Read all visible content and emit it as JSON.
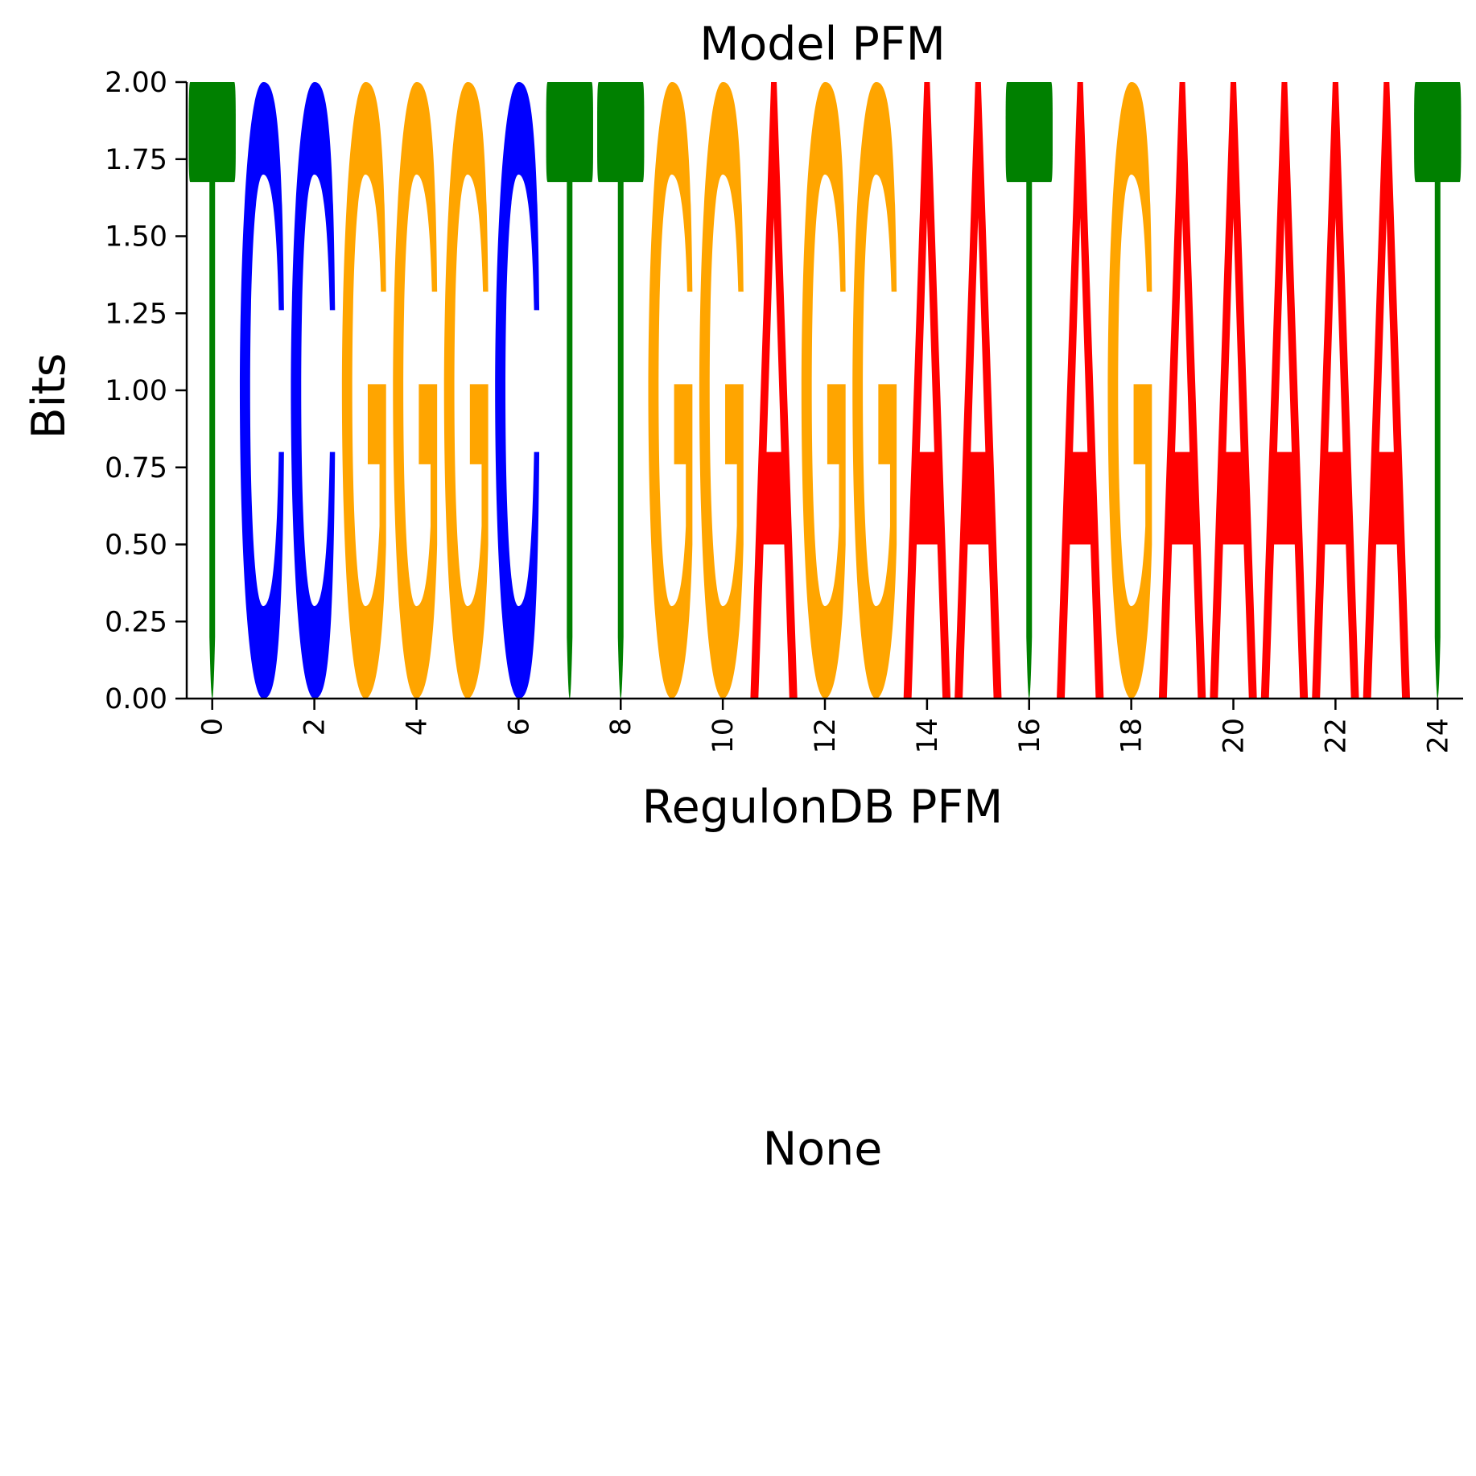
{
  "chart_data": {
    "type": "sequence-logo",
    "title": "Model PFM",
    "xlabel": "RegulonDB PFM",
    "ylabel": "Bits",
    "xlim": [
      -0.5,
      24.5
    ],
    "ylim": [
      0,
      2
    ],
    "x_ticks": [
      "0",
      "2",
      "4",
      "6",
      "8",
      "10",
      "12",
      "14",
      "16",
      "18",
      "20",
      "22",
      "24"
    ],
    "y_ticks": [
      "0.00",
      "0.25",
      "0.50",
      "0.75",
      "1.00",
      "1.25",
      "1.50",
      "1.75",
      "2.00"
    ],
    "positions": [
      0,
      1,
      2,
      3,
      4,
      5,
      6,
      7,
      8,
      9,
      10,
      11,
      12,
      13,
      14,
      15,
      16,
      17,
      18,
      19,
      20,
      21,
      22,
      23,
      24
    ],
    "sequence": [
      "T",
      "C",
      "C",
      "G",
      "G",
      "G",
      "C",
      "T",
      "T",
      "G",
      "G",
      "A",
      "G",
      "G",
      "A",
      "A",
      "T",
      "A",
      "G",
      "A",
      "A",
      "A",
      "A",
      "A",
      "T"
    ],
    "bits": [
      2,
      2,
      2,
      2,
      2,
      2,
      2,
      2,
      2,
      2,
      2,
      2,
      2,
      2,
      2,
      2,
      2,
      2,
      2,
      2,
      2,
      2,
      2,
      2,
      2
    ],
    "colors": {
      "A": "#ff0000",
      "C": "#0000ff",
      "G": "#ffa500",
      "T": "#008000"
    },
    "grid": false,
    "lower_panel_text": "None"
  }
}
